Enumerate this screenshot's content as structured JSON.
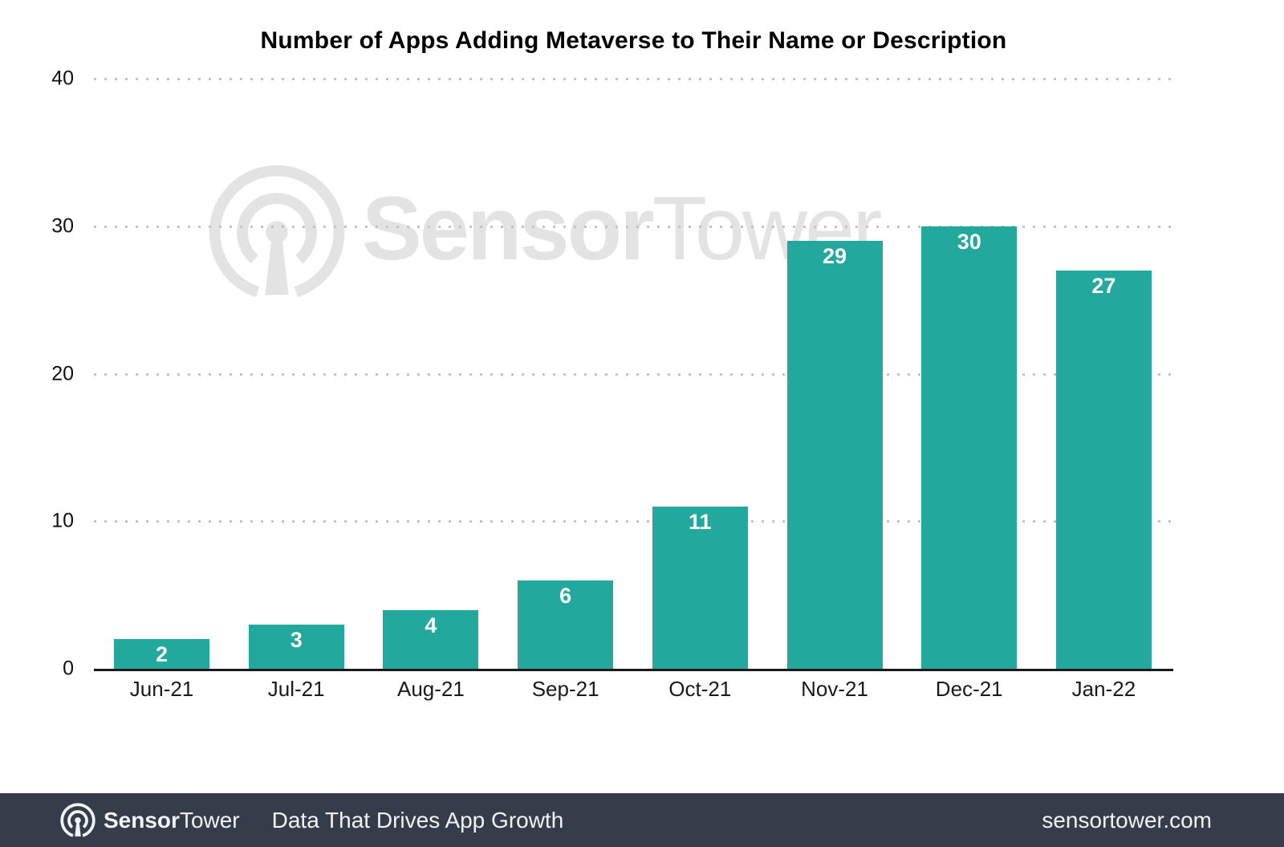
{
  "chart_data": {
    "type": "bar",
    "title": "Number of Apps Adding Metaverse to Their Name or Description",
    "categories": [
      "Jun-21",
      "Jul-21",
      "Aug-21",
      "Sep-21",
      "Oct-21",
      "Nov-21",
      "Dec-21",
      "Jan-22"
    ],
    "values": [
      2,
      3,
      4,
      6,
      11,
      29,
      30,
      27
    ],
    "xlabel": "",
    "ylabel": "",
    "ylim": [
      0,
      40
    ],
    "yticks": [
      0,
      10,
      20,
      30,
      40
    ],
    "grid": "horizontal-dotted",
    "legend": "none",
    "value_labels": "inside-top-white"
  },
  "watermark": {
    "brand_bold": "Sensor",
    "brand_light": "Tower"
  },
  "footer": {
    "brand_bold": "Sensor",
    "brand_light": "Tower",
    "tagline": "Data That Drives App Growth",
    "website": "sensortower.com"
  },
  "colors": {
    "bar": "#23A89D",
    "value_label": "#FFFFFF",
    "grid_dots": "#C3C3C3",
    "axis": "#1A1A1A",
    "title": "#000000",
    "watermark": "#E3E3E3",
    "footer_bg": "#363D4A",
    "footer_text": "#F1F3F5"
  }
}
